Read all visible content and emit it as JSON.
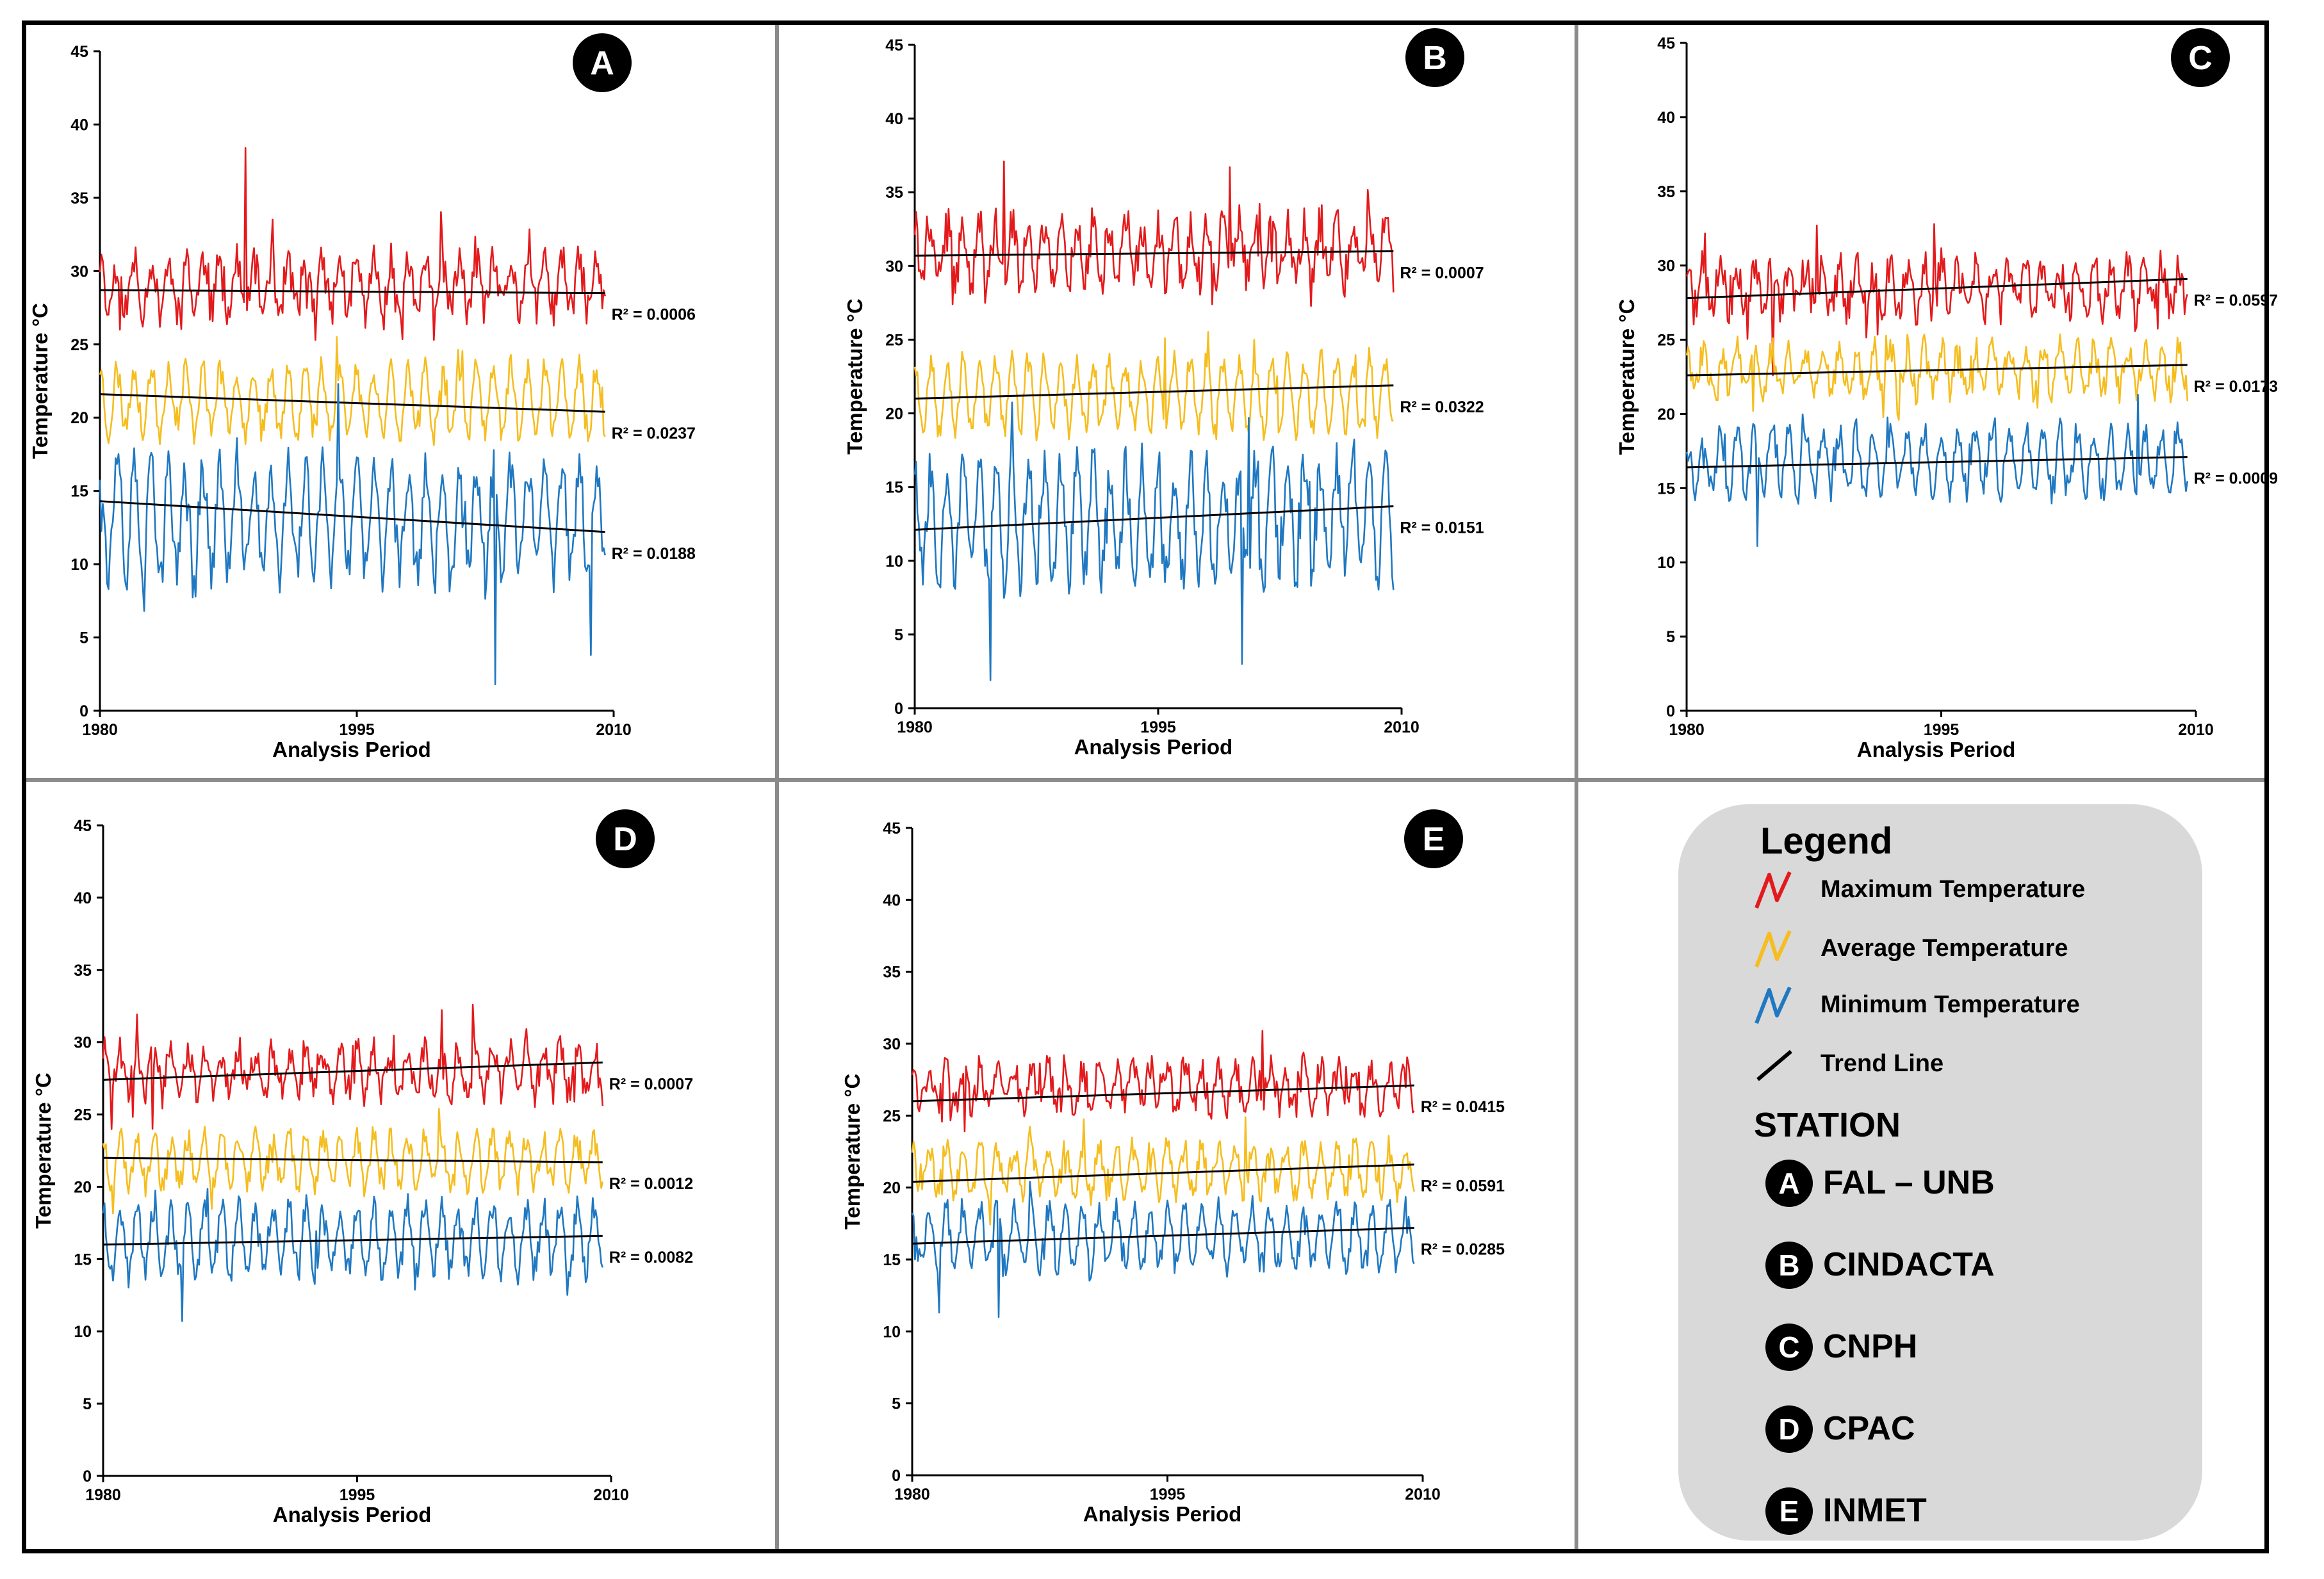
{
  "colors": {
    "max": "#e31a1c",
    "avg": "#f5bd1f",
    "min": "#1f78c1",
    "trend": "#000000"
  },
  "chart_data": [
    {
      "type": "line",
      "panel": "A",
      "xlabel": "Analysis Period",
      "ylabel": "Temperature °C",
      "x_ticks": [
        "1980",
        "1995",
        "2010"
      ],
      "xlim": [
        1980,
        2010
      ],
      "x_end": 2009.5,
      "ylim": [
        0,
        45
      ],
      "y_ticks": [
        "0",
        "5",
        "10",
        "15",
        "20",
        "25",
        "30",
        "35",
        "40",
        "45"
      ],
      "series": [
        {
          "name": "Maximum Temperature",
          "mean": 29,
          "amp": 1.6,
          "noise": 1.3,
          "seed": 11,
          "trend": [
            28.7,
            28.5
          ],
          "r2": "R² = 0.0006",
          "spikes": [
            {
              "t": 1988.5,
              "v": 38.4
            },
            {
              "t": 1981.2,
              "v": 26.0
            }
          ]
        },
        {
          "name": "Average Temperature",
          "mean": 21.2,
          "amp": 2.2,
          "noise": 0.9,
          "seed": 23,
          "trend": [
            21.6,
            20.4
          ],
          "r2": "R² = 0.0237",
          "spikes": [
            {
              "t": 1993.8,
              "v": 25.5
            }
          ]
        },
        {
          "name": "Minimum Temperature",
          "mean": 13,
          "amp": 3.5,
          "noise": 1.5,
          "seed": 37,
          "trend": [
            14.3,
            12.2
          ],
          "r2": "R² = 0.0188",
          "spikes": [
            {
              "t": 2003.1,
              "v": 1.8
            },
            {
              "t": 1993.9,
              "v": 22.3
            },
            {
              "t": 1982.6,
              "v": 6.8
            },
            {
              "t": 2008.7,
              "v": 3.8
            }
          ]
        }
      ]
    },
    {
      "type": "line",
      "panel": "B",
      "xlabel": "Analysis Period",
      "ylabel": "Temperature °C",
      "x_ticks": [
        "1980",
        "1995",
        "2010"
      ],
      "xlim": [
        1980,
        2010
      ],
      "x_end": 2009.5,
      "ylim": [
        0,
        45
      ],
      "y_ticks": [
        "0",
        "5",
        "10",
        "15",
        "20",
        "25",
        "30",
        "35",
        "40",
        "45"
      ],
      "series": [
        {
          "name": "Maximum Temperature",
          "mean": 31,
          "amp": 1.8,
          "noise": 1.4,
          "seed": 41,
          "trend": [
            30.7,
            31.0
          ],
          "r2": "R² = 0.0007",
          "spikes": [
            {
              "t": 1985.5,
              "v": 37.1
            },
            {
              "t": 1999.4,
              "v": 36.7
            },
            {
              "t": 1982.3,
              "v": 27.4
            }
          ]
        },
        {
          "name": "Average Temperature",
          "mean": 21.3,
          "amp": 2.3,
          "noise": 0.9,
          "seed": 53,
          "trend": [
            21.0,
            21.9
          ],
          "r2": "R² = 0.0322",
          "spikes": [
            {
              "t": 1995.4,
              "v": 25.1
            }
          ]
        },
        {
          "name": "Minimum Temperature",
          "mean": 12.8,
          "amp": 3.8,
          "noise": 1.6,
          "seed": 67,
          "trend": [
            12.1,
            13.7
          ],
          "r2": "R² = 0.0151",
          "spikes": [
            {
              "t": 1984.7,
              "v": 1.9
            },
            {
              "t": 2000.2,
              "v": 3.0
            },
            {
              "t": 2000.6,
              "v": 19.7
            }
          ]
        }
      ]
    },
    {
      "type": "line",
      "panel": "C",
      "xlabel": "Analysis Period",
      "ylabel": "Temperature °C",
      "x_ticks": [
        "1980",
        "1995",
        "2010"
      ],
      "xlim": [
        1980,
        2010
      ],
      "x_end": 2009.5,
      "ylim": [
        0,
        45
      ],
      "y_ticks": [
        "0",
        "5",
        "10",
        "15",
        "20",
        "25",
        "30",
        "35",
        "40",
        "45"
      ],
      "series": [
        {
          "name": "Maximum Temperature",
          "mean": 28.5,
          "amp": 1.4,
          "noise": 1.3,
          "seed": 71,
          "trend": [
            27.8,
            29.1
          ],
          "r2": "R² = 0.0597",
          "spikes": [
            {
              "t": 1994.6,
              "v": 32.8
            },
            {
              "t": 1987.7,
              "v": 32.7
            },
            {
              "t": 1985.1,
              "v": 22.6
            }
          ]
        },
        {
          "name": "Average Temperature",
          "mean": 23,
          "amp": 1.4,
          "noise": 1.0,
          "seed": 83,
          "trend": [
            22.6,
            23.3
          ],
          "r2": "R² = 0.0173",
          "spikes": [
            {
              "t": 1983.9,
              "v": 20.2
            }
          ]
        },
        {
          "name": "Minimum Temperature",
          "mean": 16.8,
          "amp": 2.0,
          "noise": 0.9,
          "seed": 97,
          "trend": [
            16.4,
            17.1
          ],
          "r2": "R² = 0.0009",
          "spikes": [
            {
              "t": 1984.2,
              "v": 11.1
            },
            {
              "t": 2006.6,
              "v": 21.3
            }
          ]
        }
      ]
    },
    {
      "type": "line",
      "panel": "D",
      "xlabel": "Analysis Period",
      "ylabel": "Temperature °C",
      "x_ticks": [
        "1980",
        "1995",
        "2010"
      ],
      "xlim": [
        1980,
        2010
      ],
      "x_end": 2009.5,
      "ylim": [
        0,
        45
      ],
      "y_ticks": [
        "0",
        "5",
        "10",
        "15",
        "20",
        "25",
        "30",
        "35",
        "40",
        "45"
      ],
      "series": [
        {
          "name": "Maximum Temperature",
          "mean": 28,
          "amp": 1.4,
          "noise": 1.2,
          "seed": 101,
          "trend": [
            27.4,
            28.6
          ],
          "r2": "R² = 0.0007",
          "spikes": [
            {
              "t": 2001.8,
              "v": 32.6
            },
            {
              "t": 1982.9,
              "v": 24.0
            }
          ]
        },
        {
          "name": "Average Temperature",
          "mean": 21.8,
          "amp": 1.6,
          "noise": 0.9,
          "seed": 113,
          "trend": [
            22.0,
            21.7
          ],
          "r2": "R² = 0.0012",
          "spikes": [
            {
              "t": 1999.8,
              "v": 25.4
            }
          ]
        },
        {
          "name": "Minimum Temperature",
          "mean": 16.4,
          "amp": 2.2,
          "noise": 1.0,
          "seed": 127,
          "trend": [
            16.0,
            16.6
          ],
          "r2": "R² = 0.0082",
          "spikes": [
            {
              "t": 1984.7,
              "v": 10.7
            }
          ]
        }
      ]
    },
    {
      "type": "line",
      "panel": "E",
      "xlabel": "Analysis Period",
      "ylabel": "Temperature °C",
      "x_ticks": [
        "1980",
        "1995",
        "2010"
      ],
      "xlim": [
        1980,
        2010
      ],
      "x_end": 2009.5,
      "ylim": [
        0,
        45
      ],
      "y_ticks": [
        "0",
        "5",
        "10",
        "15",
        "20",
        "25",
        "30",
        "35",
        "40",
        "45"
      ],
      "series": [
        {
          "name": "Maximum Temperature",
          "mean": 27,
          "amp": 1.3,
          "noise": 1.1,
          "seed": 131,
          "trend": [
            26.0,
            27.1
          ],
          "r2": "R² = 0.0415",
          "spikes": [
            {
              "t": 2000.6,
              "v": 30.9
            },
            {
              "t": 1983.1,
              "v": 23.9
            }
          ]
        },
        {
          "name": "Average Temperature",
          "mean": 21.2,
          "amp": 1.6,
          "noise": 0.9,
          "seed": 149,
          "trend": [
            20.4,
            21.6
          ],
          "r2": "R² = 0.0591",
          "spikes": [
            {
              "t": 1999.6,
              "v": 24.9
            }
          ]
        },
        {
          "name": "Minimum Temperature",
          "mean": 16.6,
          "amp": 2.0,
          "noise": 0.9,
          "seed": 157,
          "trend": [
            16.1,
            17.2
          ],
          "r2": "R² = 0.0285",
          "spikes": [
            {
              "t": 1981.6,
              "v": 11.3
            },
            {
              "t": 1985.1,
              "v": 11.0
            }
          ]
        }
      ]
    }
  ],
  "legend": {
    "title": "Legend",
    "items": [
      {
        "label": "Maximum Temperature",
        "icon": "red-line-icon"
      },
      {
        "label": "Average Temperature",
        "icon": "yellow-line-icon"
      },
      {
        "label": "Minimum Temperature",
        "icon": "blue-line-icon"
      },
      {
        "label": "Trend Line",
        "icon": "black-line-icon"
      }
    ],
    "station_heading": "STATION",
    "stations": [
      {
        "letter": "A",
        "name": "FAL – UNB"
      },
      {
        "letter": "B",
        "name": "CINDACTA"
      },
      {
        "letter": "C",
        "name": "CNPH"
      },
      {
        "letter": "D",
        "name": "CPAC"
      },
      {
        "letter": "E",
        "name": "INMET"
      }
    ]
  }
}
